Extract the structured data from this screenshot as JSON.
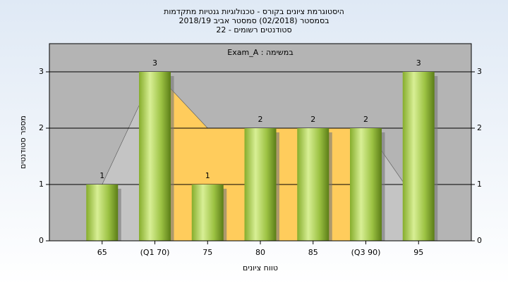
{
  "chart_data": {
    "type": "bar",
    "title": "היסטוגרמת ציונים בקורס - טכנולוגיות גנטיות מתקדמות",
    "subtitle": [
      "בסמסטר  (02/2018)  סמסטר אביב 2018/19",
      "סטודנטים רשומים - 22"
    ],
    "annotation": "Exam_A : במשימה",
    "x_label": "טווח ציונים",
    "y_label": "מספר סטודנטים",
    "categories": [
      "65",
      "(Q1 70)",
      "75",
      "80",
      "85",
      "(Q3 90)",
      "95"
    ],
    "values": [
      1,
      3,
      1,
      2,
      2,
      2,
      3
    ],
    "color": "#9cc243",
    "area": {
      "values": [
        1,
        3,
        2,
        2,
        2,
        2,
        0.65
      ],
      "color": "#ffcc5c",
      "outer_color": "#c4c4c4"
    },
    "ylim": [
      0,
      3.5
    ],
    "yticks": [
      0,
      1,
      2,
      3
    ],
    "grid": true
  }
}
